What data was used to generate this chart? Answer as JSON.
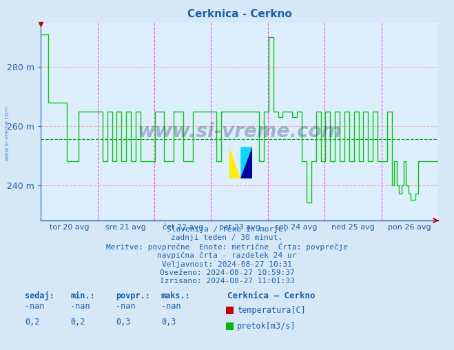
{
  "title": "Cerknica - Cerkno",
  "title_color": "#1a5fb4",
  "bg_color": "#d6e8f5",
  "plot_bg_color": "#ddeeff",
  "x_labels": [
    "tor 20 avg",
    "sre 21 avg",
    "čet 22 avg",
    "pet 23 avg",
    "sob 24 avg",
    "ned 25 avg",
    "pon 26 avg"
  ],
  "y_ticks": [
    240,
    260,
    280
  ],
  "y_min": 228,
  "y_max": 295,
  "avg_line_y": 255.5,
  "avg_line_color": "#00aa00",
  "grid_h_color": "#ffaaaa",
  "grid_v_color": "#ff44ff",
  "line_color": "#00cc00",
  "temp_color": "#cc0000",
  "text_color": "#1a5fb4",
  "info_lines": [
    "Slovenija / reke in morje.",
    "zadnji teden / 30 minut.",
    "Meritve: povprečne  Enote: metrične  Črta: povprečje",
    "navpična črta - razdelek 24 ur",
    "Veljavnost: 2024-08-27 10:31",
    "Osveženo: 2024-08-27 10:59:37",
    "Izrisano: 2024-08-27 11:01:33"
  ],
  "legend_station": "Cerknica – Cerkno",
  "legend_temp_label": "temperatura[C]",
  "legend_flow_label": "pretok[m3/s]",
  "sedaj_label": "sedaj:",
  "min_label": "min.:",
  "povpr_label": "povpr.:",
  "maks_label": "maks.:",
  "row1_vals": [
    "-nan",
    "-nan",
    "-nan",
    "-nan"
  ],
  "row2_vals": [
    "0,2",
    "0,2",
    "0,3",
    "0,3"
  ],
  "watermark": "www.si-vreme.com"
}
